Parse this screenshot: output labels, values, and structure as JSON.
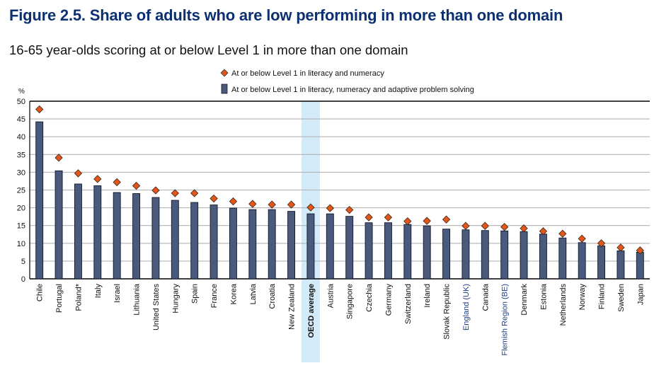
{
  "figure": {
    "title": "Figure 2.5. Share of adults who are low performing in more than one domain",
    "subtitle": "16-65 year-olds scoring at or below Level 1 in more than one domain"
  },
  "chart_data": {
    "type": "bar",
    "ylabel": "%",
    "ylim": [
      0,
      50
    ],
    "yticks": [
      0,
      5,
      10,
      15,
      20,
      25,
      30,
      35,
      40,
      45,
      50
    ],
    "grid": true,
    "legend_position": "top-center",
    "categories": [
      "Chile",
      "Portugal",
      "Poland*",
      "Italy",
      "Israel",
      "Lithuania",
      "United States",
      "Hungary",
      "Spain",
      "France",
      "Korea",
      "Latvia",
      "Croatia",
      "New Zealand",
      "OECD average",
      "Austria",
      "Singapore",
      "Czechia",
      "Germany",
      "Switzerland",
      "Ireland",
      "Slovak Republic",
      "England (UK)",
      "Canada",
      "Flemish Region (BE)",
      "Denmark",
      "Estonia",
      "Netherlands",
      "Norway",
      "Finland",
      "Sweden",
      "Japan"
    ],
    "highlight_category": "OECD average",
    "subnational_categories": [
      "England (UK)",
      "Flemish Region (BE)"
    ],
    "series": [
      {
        "name": "At or below Level 1 in literacy, numeracy and adaptive problem solving",
        "marker": "bar",
        "color": "#4a5a7c",
        "values": [
          44.2,
          30.4,
          26.7,
          26.2,
          24.3,
          24.0,
          22.9,
          22.1,
          21.5,
          20.8,
          19.9,
          19.5,
          19.5,
          19.0,
          18.3,
          18.3,
          17.6,
          15.8,
          15.8,
          15.3,
          14.9,
          14.0,
          13.8,
          13.6,
          13.5,
          13.3,
          12.6,
          11.5,
          10.2,
          9.3,
          7.9,
          7.5
        ]
      },
      {
        "name": "At or below Level 1 in literacy and numeracy",
        "marker": "diamond",
        "color": "#e2561a",
        "values": [
          47.7,
          34.1,
          29.7,
          28.1,
          27.2,
          26.2,
          24.9,
          24.1,
          24.1,
          22.6,
          21.8,
          21.1,
          20.9,
          20.9,
          20.1,
          19.9,
          19.4,
          17.3,
          17.3,
          16.2,
          16.3,
          16.7,
          14.9,
          14.9,
          14.6,
          14.2,
          13.4,
          12.7,
          11.3,
          10.0,
          8.8,
          8.0
        ]
      }
    ]
  },
  "colors": {
    "title": "#0c3070",
    "bar_fill": "#4a5a7c",
    "bar_stroke": "#10182a",
    "diamond_fill": "#e2561a",
    "highlight_band": "#d3eaf8",
    "subnational_label": "#1f3f88",
    "gridline": "#b3b3b3"
  }
}
